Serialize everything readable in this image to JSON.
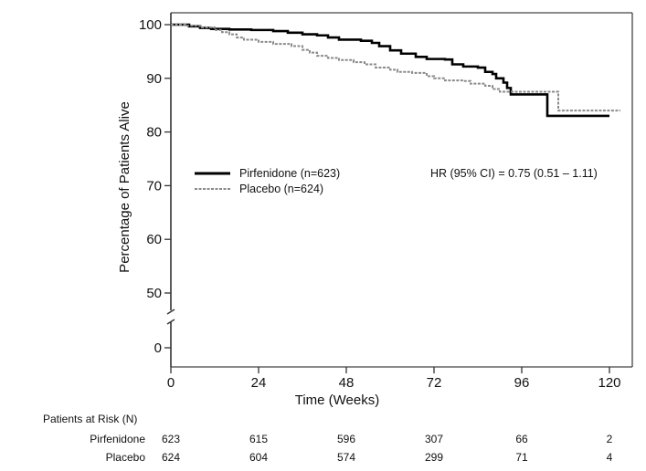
{
  "chart_data": {
    "type": "line",
    "subtype": "kaplan-meier",
    "title": "",
    "xlabel": "Time (Weeks)",
    "ylabel": "Percentage of Patients Alive",
    "xlim": [
      0,
      126
    ],
    "ylim": [
      -4,
      104
    ],
    "y_axis_break": "between 0 and 50",
    "x_ticks": [
      0,
      24,
      48,
      72,
      96,
      120
    ],
    "y_ticks": [
      0,
      50,
      60,
      70,
      80,
      90,
      100
    ],
    "grid": false,
    "legend": {
      "placement": "center-left",
      "entries": [
        {
          "label": "Pirfenidone (n=623)",
          "style": "solid",
          "color": "#000000"
        },
        {
          "label": "Placebo (n=624)",
          "style": "dashed",
          "color": "#8a8a8a"
        }
      ]
    },
    "annotation": "HR (95% CI) = 0.75 (0.51 – 1.11)",
    "series": [
      {
        "name": "Pirfenidone (n=623)",
        "style": "solid",
        "color": "#000000",
        "x": [
          0,
          5,
          8,
          11,
          16,
          22,
          28,
          32,
          36,
          40,
          43,
          46,
          52,
          55,
          57,
          60,
          63,
          67,
          70,
          75,
          77,
          80,
          84,
          86,
          88,
          89,
          91,
          92,
          93,
          101,
          103,
          120
        ],
        "y": [
          100,
          99.7,
          99.4,
          99.2,
          99.1,
          99.0,
          98.8,
          98.5,
          98.2,
          98.0,
          97.6,
          97.2,
          97.0,
          96.6,
          96.0,
          95.2,
          94.6,
          94.0,
          93.6,
          93.5,
          92.6,
          92.2,
          92.0,
          91.2,
          90.8,
          90.0,
          89.2,
          88.2,
          87.0,
          87.0,
          83.0,
          83.0
        ]
      },
      {
        "name": "Placebo (n=624)",
        "style": "dashed",
        "color": "#8a8a8a",
        "x": [
          0,
          4,
          8,
          12,
          14,
          16,
          18,
          20,
          24,
          28,
          33,
          36,
          38,
          40,
          43,
          46,
          50,
          53,
          56,
          60,
          62,
          66,
          70,
          72,
          75,
          80,
          82,
          86,
          88,
          90,
          104,
          106,
          123
        ],
        "y": [
          100,
          99.8,
          99.5,
          99.0,
          98.6,
          98.2,
          97.6,
          97.2,
          96.8,
          96.4,
          96.0,
          95.3,
          94.8,
          94.2,
          93.8,
          93.4,
          93.0,
          92.6,
          92.0,
          91.6,
          91.2,
          91.0,
          90.4,
          90.0,
          89.6,
          89.5,
          89.0,
          88.6,
          88.0,
          87.5,
          87.5,
          84.0,
          84.0
        ]
      }
    ],
    "risk_table": {
      "title": "Patients at Risk (N)",
      "timepoints": [
        0,
        24,
        48,
        72,
        96,
        120
      ],
      "rows": [
        {
          "label": "Pirfenidone",
          "values": [
            "623",
            "615",
            "596",
            "307",
            "66",
            "2"
          ]
        },
        {
          "label": "Placebo",
          "values": [
            "624",
            "604",
            "574",
            "299",
            "71",
            "4"
          ]
        }
      ]
    }
  }
}
